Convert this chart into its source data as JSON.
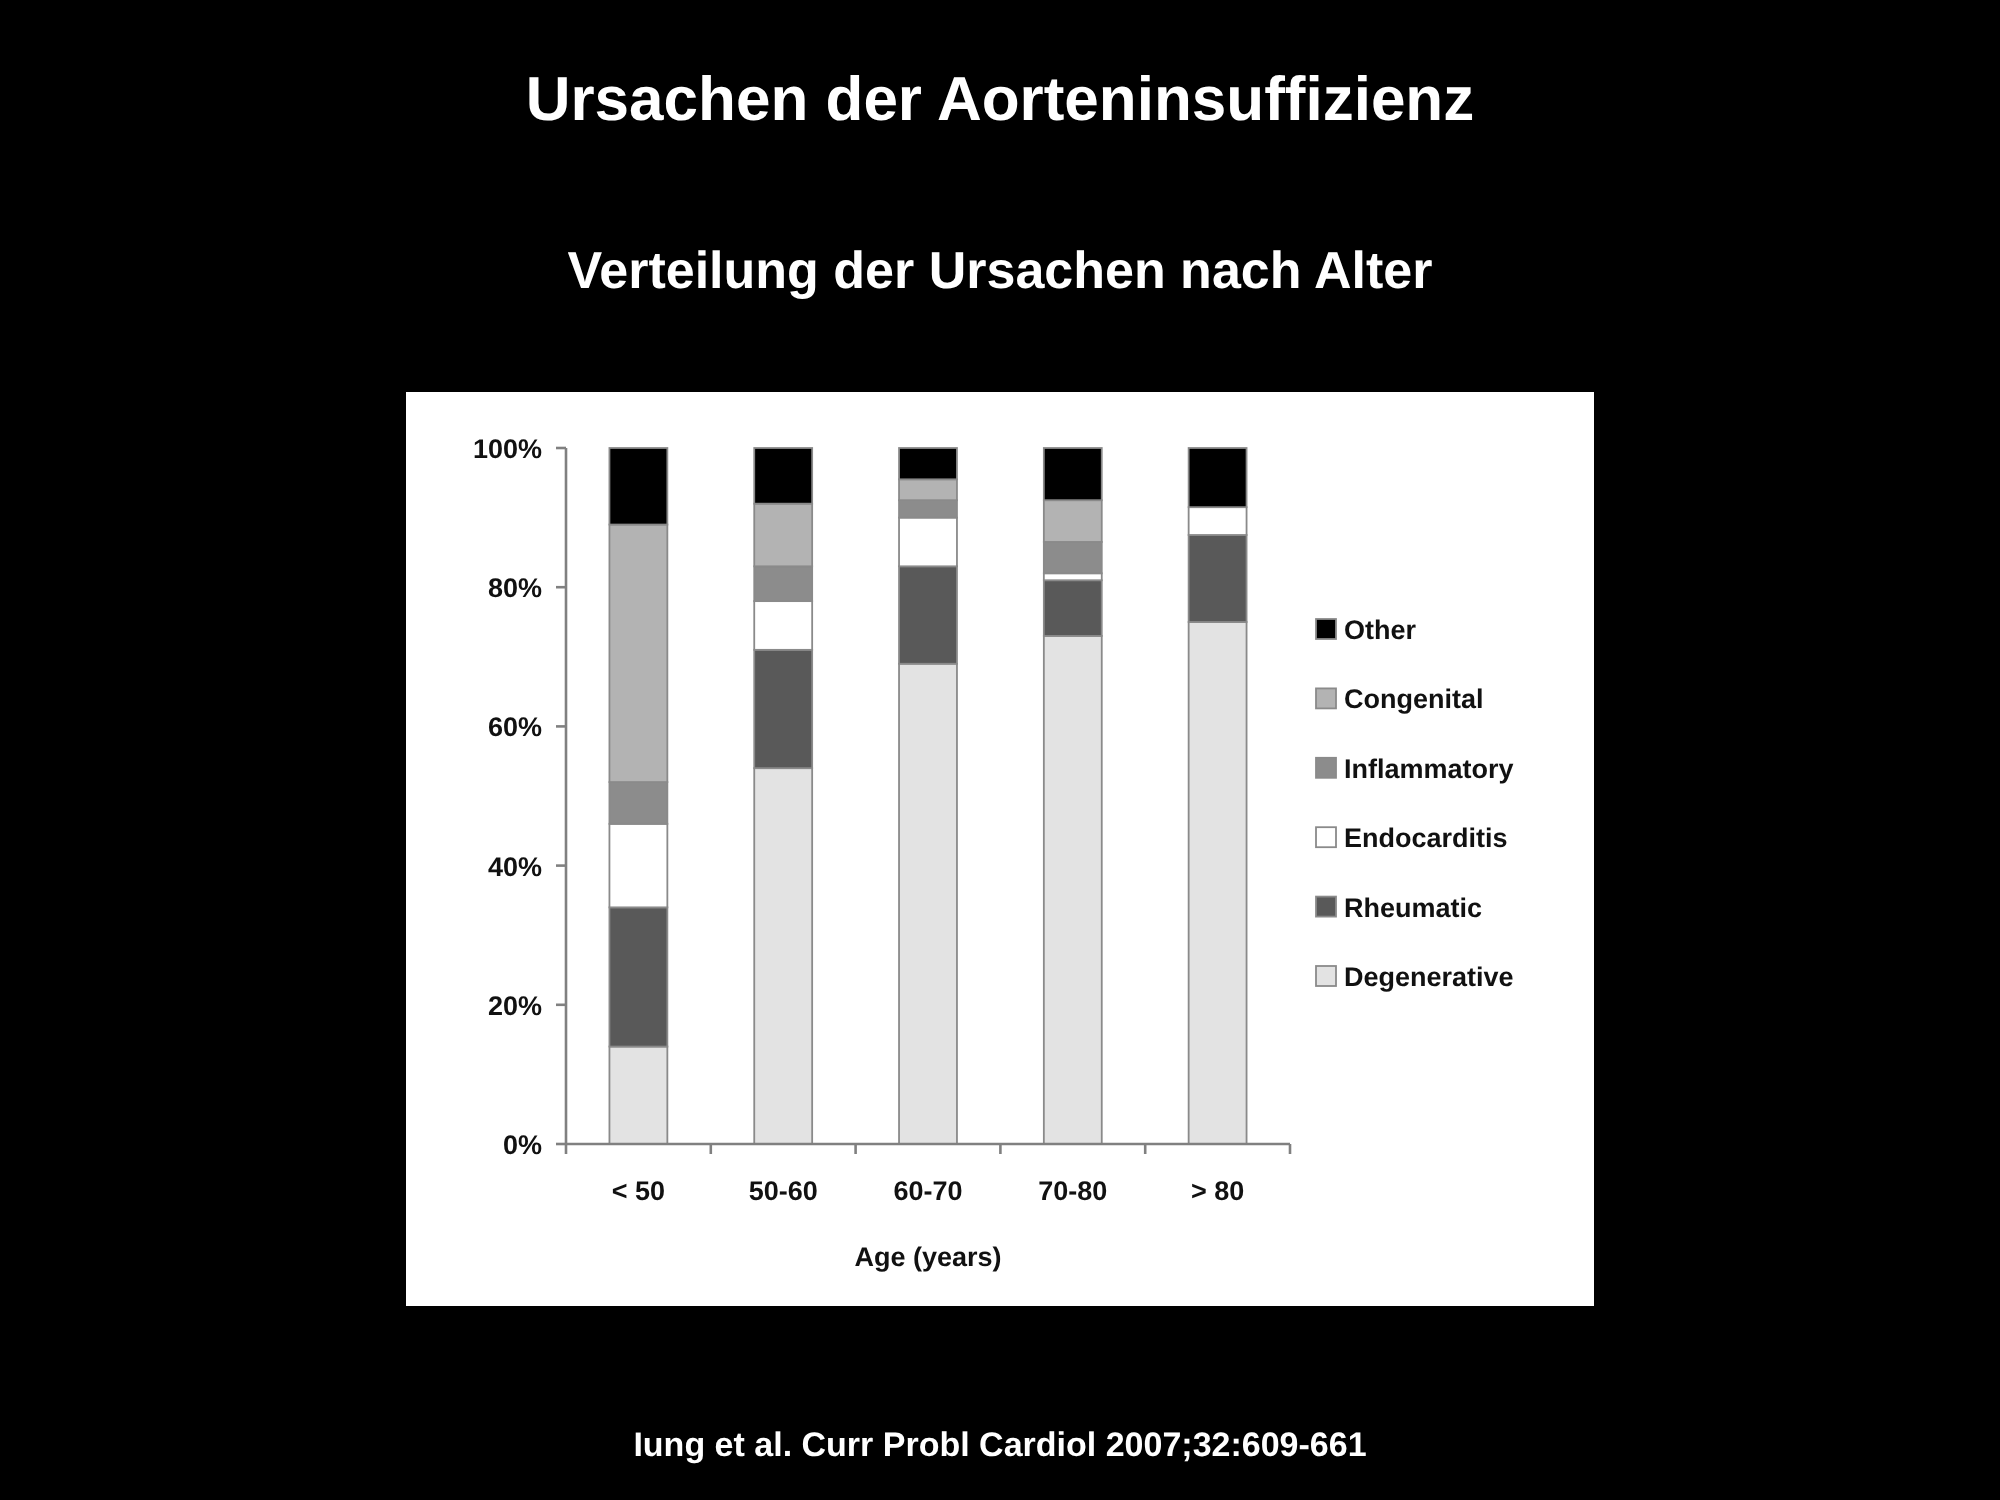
{
  "chart_data": {
    "type": "bar",
    "title": "Ursachen der Aorteninsuffizienz",
    "subtitle": "Verteilung der Ursachen nach Alter",
    "xlabel": "Age (years)",
    "annotations": [
      "Iung et al. Curr Probl Cardiol 2007;32:609-661"
    ],
    "categories": [
      "< 50",
      "50-60",
      "60-70",
      "70-80",
      "> 80"
    ],
    "stacked": true,
    "series": [
      {
        "name": "Degenerative",
        "color": "#e3e3e3",
        "values": [
          14,
          54,
          69,
          73,
          75
        ]
      },
      {
        "name": "Rheumatic",
        "color": "#595959",
        "values": [
          20,
          17,
          14,
          8,
          12.5
        ]
      },
      {
        "name": "Endocarditis",
        "color": "#ffffff",
        "values": [
          12,
          7,
          7,
          1,
          4
        ]
      },
      {
        "name": "Inflammatory",
        "color": "#8c8c8c",
        "values": [
          6,
          5,
          2.5,
          4.5,
          0
        ]
      },
      {
        "name": "Congenital",
        "color": "#b3b3b3",
        "values": [
          37,
          9,
          3,
          6,
          0
        ]
      },
      {
        "name": "Other",
        "color": "#000000",
        "values": [
          11,
          8,
          4.5,
          7.5,
          8.5
        ]
      }
    ],
    "ylim": [
      0,
      100
    ],
    "yticks": [
      {
        "value": 0,
        "label": "0%"
      },
      {
        "value": 20,
        "label": "20%"
      },
      {
        "value": 40,
        "label": "40%"
      },
      {
        "value": 60,
        "label": "60%"
      },
      {
        "value": 80,
        "label": "80%"
      },
      {
        "value": 100,
        "label": "100%"
      }
    ],
    "legend": "right"
  }
}
